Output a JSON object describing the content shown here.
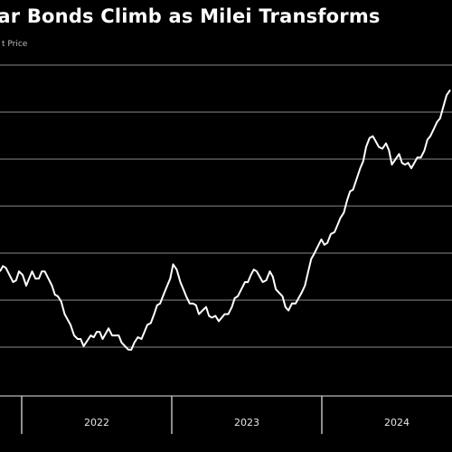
{
  "chart_data": {
    "type": "line",
    "title": "lar Bonds Climb as Milei Transforms",
    "subtitle": "t Price",
    "xlabel": "",
    "ylabel": "",
    "x_tick_labels": [
      "2022",
      "2023",
      "2024"
    ],
    "grid": true,
    "line_color": "#ffffff",
    "background": "#000000",
    "series": [
      {
        "values": [
          [
            "2021-07-01",
            27.5
          ],
          [
            "2021-07-15",
            28.0
          ],
          [
            "2021-08-01",
            26.0
          ],
          [
            "2021-08-15",
            27.5
          ],
          [
            "2021-09-01",
            25.5
          ],
          [
            "2021-09-15",
            27.5
          ],
          [
            "2021-10-01",
            26.5
          ],
          [
            "2021-10-15",
            27.5
          ],
          [
            "2021-11-01",
            25.5
          ],
          [
            "2021-11-15",
            24.0
          ],
          [
            "2021-12-01",
            21.5
          ],
          [
            "2021-12-15",
            20.0
          ],
          [
            "2022-01-01",
            18.0
          ],
          [
            "2022-01-15",
            17.0
          ],
          [
            "2022-02-01",
            18.5
          ],
          [
            "2022-02-15",
            19.0
          ],
          [
            "2022-03-01",
            18.0
          ],
          [
            "2022-03-15",
            19.5
          ],
          [
            "2022-04-01",
            18.5
          ],
          [
            "2022-04-15",
            17.5
          ],
          [
            "2022-05-01",
            16.5
          ],
          [
            "2022-05-15",
            17.5
          ],
          [
            "2022-06-01",
            18.0
          ],
          [
            "2022-06-15",
            20.0
          ],
          [
            "2022-07-01",
            21.5
          ],
          [
            "2022-07-15",
            23.0
          ],
          [
            "2022-08-01",
            25.5
          ],
          [
            "2022-08-15",
            28.5
          ],
          [
            "2022-09-01",
            26.0
          ],
          [
            "2022-09-15",
            24.0
          ],
          [
            "2022-10-01",
            23.0
          ],
          [
            "2022-10-15",
            21.5
          ],
          [
            "2022-11-01",
            22.5
          ],
          [
            "2022-11-15",
            21.0
          ],
          [
            "2022-12-01",
            20.5
          ],
          [
            "2022-12-15",
            21.5
          ],
          [
            "2023-01-01",
            22.5
          ],
          [
            "2023-01-15",
            24.0
          ],
          [
            "2023-02-01",
            26.0
          ],
          [
            "2023-02-15",
            27.0
          ],
          [
            "2023-03-01",
            27.5
          ],
          [
            "2023-03-15",
            26.0
          ],
          [
            "2023-04-01",
            27.5
          ],
          [
            "2023-04-15",
            25.0
          ],
          [
            "2023-05-01",
            24.0
          ],
          [
            "2023-05-15",
            22.0
          ],
          [
            "2023-06-01",
            23.0
          ],
          [
            "2023-06-15",
            24.5
          ],
          [
            "2023-07-01",
            27.5
          ],
          [
            "2023-07-15",
            30.0
          ],
          [
            "2023-08-01",
            32.0
          ],
          [
            "2023-08-15",
            31.5
          ],
          [
            "2023-09-01",
            33.0
          ],
          [
            "2023-09-15",
            35.0
          ],
          [
            "2023-10-01",
            37.5
          ],
          [
            "2023-10-15",
            39.0
          ],
          [
            "2023-11-01",
            42.0
          ],
          [
            "2023-11-15",
            45.0
          ],
          [
            "2023-12-01",
            46.5
          ],
          [
            "2023-12-15",
            45.0
          ],
          [
            "2024-01-01",
            45.5
          ],
          [
            "2024-01-15",
            42.5
          ],
          [
            "2024-02-01",
            44.0
          ],
          [
            "2024-02-15",
            42.5
          ],
          [
            "2024-03-01",
            42.0
          ],
          [
            "2024-03-15",
            43.5
          ],
          [
            "2024-04-01",
            44.5
          ],
          [
            "2024-04-15",
            46.5
          ],
          [
            "2024-05-01",
            48.5
          ],
          [
            "2024-05-15",
            50.5
          ],
          [
            "2024-06-01",
            53.0
          ]
        ]
      }
    ]
  }
}
